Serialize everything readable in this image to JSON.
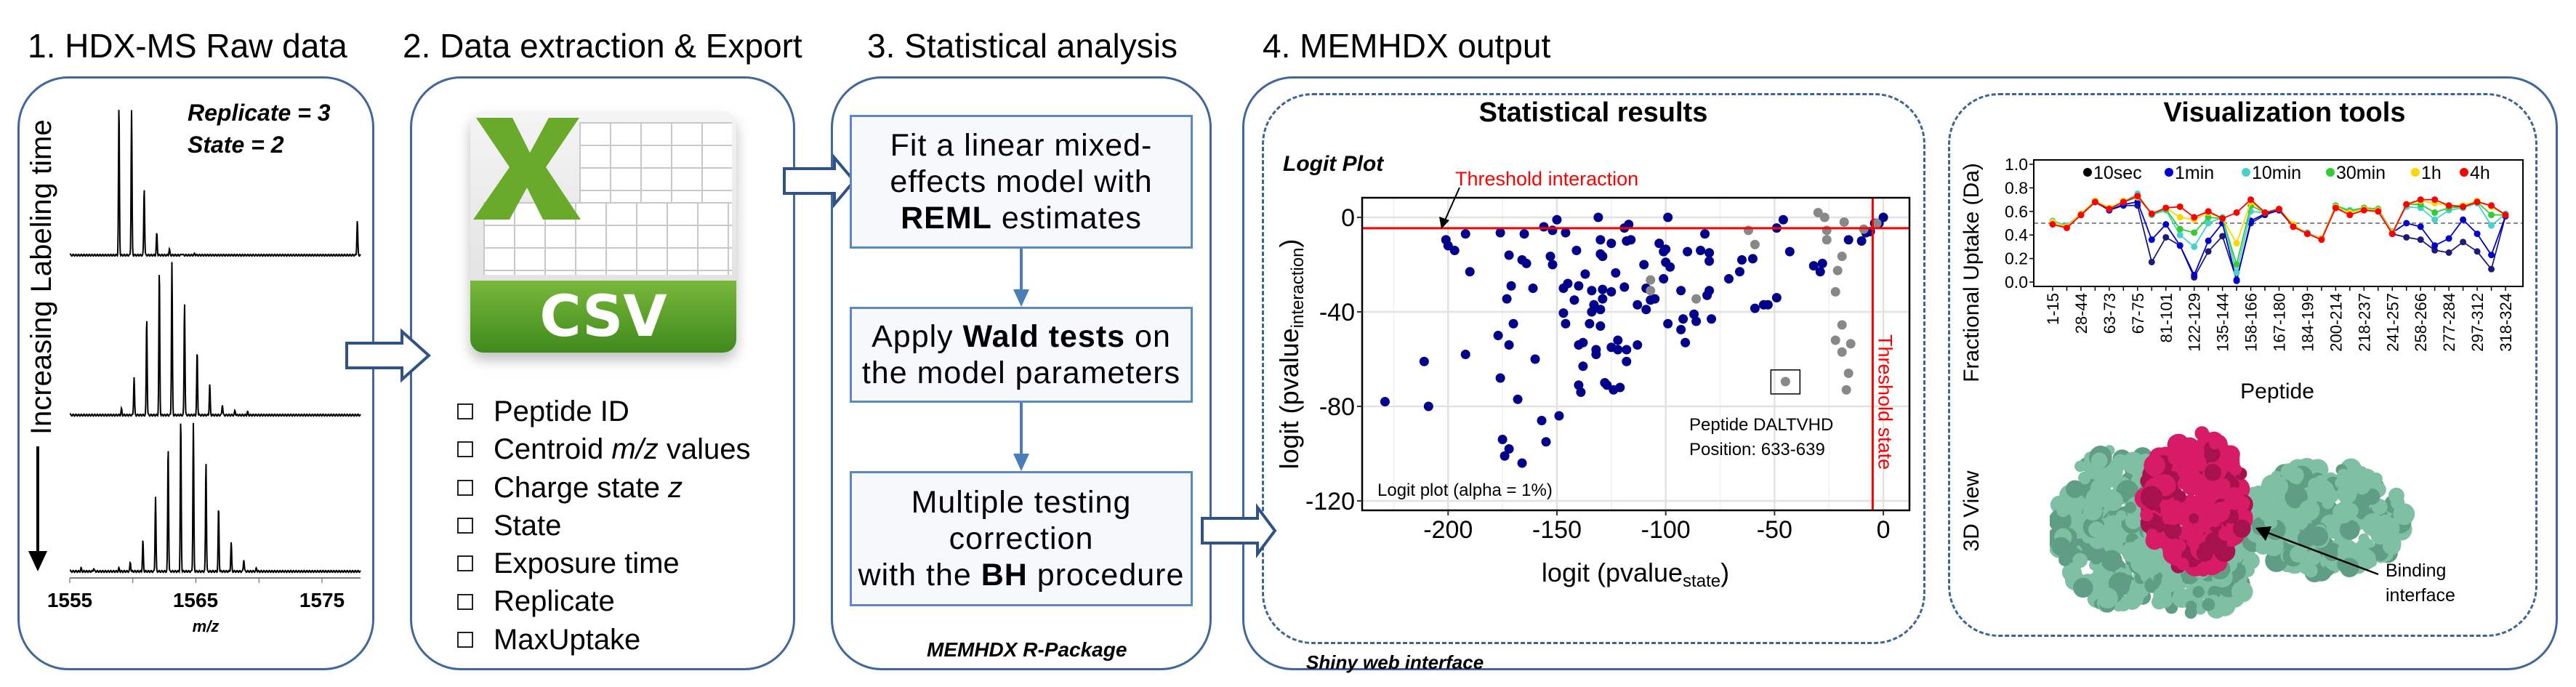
{
  "step1": {
    "title": "1. HDX-MS Raw data",
    "replicate": "Replicate = 3",
    "state": "State = 2",
    "time_axis_label": "Increasing Labeling time",
    "mz_ticks": [
      "1555",
      "1565",
      "1575"
    ],
    "mz_label": "m/z",
    "spectra": [
      {
        "peaks_mz": [
          1558.9,
          1559.9,
          1560.9,
          1561.9,
          1562.9,
          1563.9,
          1564.9,
          1577.8
        ],
        "rel_intensity": [
          1.0,
          0.97,
          0.45,
          0.15,
          0.04,
          0.01,
          0.01,
          0.23
        ]
      },
      {
        "peaks_mz": [
          1559.1,
          1560.1,
          1561.1,
          1562.1,
          1563.1,
          1564.1,
          1565.1,
          1566.1,
          1567.1,
          1568.1,
          1569.1
        ],
        "rel_intensity": [
          0.04,
          0.25,
          0.64,
          0.95,
          1.0,
          0.74,
          0.42,
          0.2,
          0.07,
          0.03,
          0.02
        ]
      },
      {
        "peaks_mz": [
          1555.9,
          1556.9,
          1558.9,
          1559.8,
          1560.8,
          1561.8,
          1562.8,
          1563.8,
          1564.8,
          1565.8,
          1566.8,
          1567.8,
          1568.8,
          1569.8
        ],
        "rel_intensity": [
          0.02,
          0.02,
          0.02,
          0.06,
          0.2,
          0.49,
          0.82,
          1.0,
          0.97,
          0.72,
          0.42,
          0.19,
          0.08,
          0.02
        ]
      }
    ]
  },
  "step2": {
    "title": "2. Data extraction & Export",
    "file_icon_label": "CSV",
    "fields": [
      {
        "pre": "Peptide ID",
        "em": "",
        "post": ""
      },
      {
        "pre": "Centroid ",
        "em": "m/z",
        "post": " values"
      },
      {
        "pre": "Charge state ",
        "em": "z",
        "post": ""
      },
      {
        "pre": "State",
        "em": "",
        "post": ""
      },
      {
        "pre": "Exposure time",
        "em": "",
        "post": ""
      },
      {
        "pre": "Replicate",
        "em": "",
        "post": ""
      },
      {
        "pre": "MaxUptake",
        "em": "",
        "post": ""
      }
    ]
  },
  "step3": {
    "title": "3. Statistical analysis",
    "box1": {
      "l1": "Fit a linear mixed-",
      "l2": "effects model with",
      "bold": "REML",
      "l3": " estimates"
    },
    "box2": {
      "pre": "Apply ",
      "bold": "Wald tests",
      "post": " on",
      "l2": "the model parameters"
    },
    "box3": {
      "l1": "Multiple testing",
      "l2": "correction",
      "pre": "with the ",
      "bold": "BH",
      "post": " procedure"
    },
    "footer": "MEMHDX R-Package"
  },
  "step4": {
    "title": "4. MEMHDX output",
    "footer": "Shiny web interface",
    "stats": {
      "title": "Statistical results",
      "plot_title": "Logit Plot",
      "threshold_interaction": "Threshold interaction",
      "threshold_state": "Threshold state",
      "peptide_name": "Peptide DALTVHD",
      "peptide_position": "Position: 633-639",
      "alpha_note": "Logit plot (alpha = 1%)"
    },
    "viz": {
      "title": "Visualization tools",
      "view3d_label": "3D View",
      "binding_l1": "Binding",
      "binding_l2": "interface",
      "colors": {
        "protein": "#7fbfa3",
        "interface": "#d81b66"
      }
    }
  },
  "chart_data": [
    {
      "type": "scatter",
      "title": "Logit Plot",
      "xlabel": "logit (pvalue",
      "xlabel_sub": "state",
      "ylabel": "logit (pvalue",
      "ylabel_sub": "interaction",
      "xlim": [
        -239.5,
        12
      ],
      "ylim": [
        -124,
        8.3
      ],
      "xticks": [
        -200,
        -150,
        -100,
        -50,
        0
      ],
      "yticks": [
        0,
        -40,
        -80,
        -120
      ],
      "grid": true,
      "thresholds": {
        "interaction_y": -4.6,
        "state_x": -4.9,
        "color": "#ff0000"
      },
      "series": [
        {
          "color": "#00008b",
          "points": [
            [
              -229,
              -78
            ],
            [
              -211,
              -61
            ],
            [
              -209,
              -80
            ],
            [
              -201,
              -9.5
            ],
            [
              -200,
              -12
            ],
            [
              -197,
              -14
            ],
            [
              -192,
              -7
            ],
            [
              -190,
              -23
            ],
            [
              -192,
              -58
            ],
            [
              -177,
              -50
            ],
            [
              -176,
              -6.5
            ],
            [
              -176,
              -68
            ],
            [
              -175,
              -94
            ],
            [
              -174,
              -101
            ],
            [
              -172,
              -98
            ],
            [
              -173,
              -34.5
            ],
            [
              -172,
              -16
            ],
            [
              -171,
              -29
            ],
            [
              -170,
              -45
            ],
            [
              -172,
              -54
            ],
            [
              -168,
              -77
            ],
            [
              -166,
              -104
            ],
            [
              -166,
              -18
            ],
            [
              -165,
              -7
            ],
            [
              -164,
              -19.5
            ],
            [
              -161,
              -30
            ],
            [
              -160,
              -60
            ],
            [
              -157,
              -86
            ],
            [
              -155,
              -95
            ],
            [
              -156,
              -4
            ],
            [
              -152,
              -5.5
            ],
            [
              -150,
              -1
            ],
            [
              -153,
              -16.5
            ],
            [
              -152,
              -20
            ],
            [
              -149,
              -84
            ],
            [
              -147,
              -30
            ],
            [
              -147,
              -40.5
            ],
            [
              -146,
              -6.5
            ],
            [
              -146,
              -45
            ],
            [
              -145,
              -28
            ],
            [
              -142,
              -35
            ],
            [
              -141,
              -14
            ],
            [
              -140,
              -54
            ],
            [
              -140,
              -29
            ],
            [
              -140,
              -71
            ],
            [
              -139,
              -74
            ],
            [
              -138,
              -63
            ],
            [
              -138,
              -53
            ],
            [
              -137,
              -24
            ],
            [
              -135,
              -45
            ],
            [
              -134,
              -31
            ],
            [
              -134,
              -40
            ],
            [
              -133,
              -37
            ],
            [
              -132,
              -58
            ],
            [
              -132,
              -56
            ],
            [
              -131,
              0
            ],
            [
              -130,
              -9.5
            ],
            [
              -130,
              -15.5
            ],
            [
              -130,
              -39
            ],
            [
              -130,
              -46
            ],
            [
              -129,
              -30.5
            ],
            [
              -129,
              -16.5
            ],
            [
              -129,
              -34.5
            ],
            [
              -128,
              -70
            ],
            [
              -127,
              -71
            ],
            [
              -125,
              -31.5
            ],
            [
              -125,
              -11
            ],
            [
              -125,
              -55
            ],
            [
              -124,
              -73
            ],
            [
              -123,
              -23.5
            ],
            [
              -122,
              -52
            ],
            [
              -122,
              -56
            ],
            [
              -121,
              -72
            ],
            [
              -119,
              -4.5
            ],
            [
              -119,
              -29.5
            ],
            [
              -118,
              -56
            ],
            [
              -118,
              -61
            ],
            [
              -118,
              -10
            ],
            [
              -117,
              -3
            ],
            [
              -116,
              -9.5
            ],
            [
              -113,
              -37
            ],
            [
              -113,
              -54
            ],
            [
              -110,
              -20
            ],
            [
              -109,
              -39
            ],
            [
              -109,
              -30
            ],
            [
              -107,
              -35
            ],
            [
              -105,
              -34.5
            ],
            [
              -103,
              -11
            ],
            [
              -101,
              -26
            ],
            [
              -101,
              -14.5
            ],
            [
              -100,
              -13.5
            ],
            [
              -100,
              -19
            ],
            [
              -99,
              0
            ],
            [
              -99,
              -45
            ],
            [
              -98,
              -21
            ],
            [
              -93,
              -31
            ],
            [
              -93,
              -47.5
            ],
            [
              -92,
              -43
            ],
            [
              -91,
              -53
            ],
            [
              -90,
              -14.5
            ],
            [
              -87,
              -41
            ],
            [
              -86,
              -44
            ],
            [
              -84,
              -14
            ],
            [
              -82,
              -7
            ],
            [
              -81,
              -33
            ],
            [
              -80,
              -15
            ],
            [
              -80,
              -31
            ],
            [
              -80,
              -18.5
            ],
            [
              -79,
              -43
            ],
            [
              -71,
              -26
            ],
            [
              -66,
              -23
            ],
            [
              -65,
              -18
            ],
            [
              -60,
              -17.5
            ],
            [
              -59,
              -38.5
            ],
            [
              -55,
              -37
            ],
            [
              -53,
              -37
            ],
            [
              -49,
              -34
            ],
            [
              -49,
              -4.5
            ],
            [
              -46,
              -1
            ],
            [
              -43,
              -14.5
            ],
            [
              -32,
              -20.5
            ],
            [
              -29,
              -23
            ],
            [
              -28,
              -19.5
            ],
            [
              -16,
              -9.5
            ],
            [
              -10,
              -10
            ],
            [
              -8,
              -6.5
            ],
            [
              -6,
              -6
            ],
            [
              -4,
              -2.5
            ],
            [
              -2,
              -2.5
            ],
            [
              0,
              0
            ]
          ]
        },
        {
          "color": "#888888",
          "points": [
            [
              -107,
              -26.5
            ],
            [
              -107,
              -31
            ],
            [
              -86,
              -34.5
            ],
            [
              -62,
              -5.5
            ],
            [
              -59,
              -11.5
            ],
            [
              -45,
              -69.5
            ],
            [
              -30,
              2
            ],
            [
              -27,
              0
            ],
            [
              -26,
              -5.5
            ],
            [
              -26,
              -9.5
            ],
            [
              -18,
              -2
            ],
            [
              -19,
              -16.5
            ],
            [
              -21,
              -22.5
            ],
            [
              -22,
              -31.5
            ],
            [
              -19,
              -45.5
            ],
            [
              -22,
              -52
            ],
            [
              -19,
              -57
            ],
            [
              -15,
              -53.5
            ],
            [
              -16,
              -66
            ],
            [
              -17,
              -73
            ],
            [
              -9,
              -5
            ],
            [
              -3,
              -2.5
            ]
          ]
        }
      ],
      "highlighted_point": [
        -45,
        -69.5
      ]
    },
    {
      "type": "line",
      "xlabel": "Peptide",
      "ylabel": "Fractional Uptake (Da)",
      "ylim": [
        0,
        1
      ],
      "yticks": [
        "0.0",
        "0.2",
        "0.4",
        "0.6",
        "0.8",
        "1.0"
      ],
      "reference_line": 0.5,
      "legend_position": "top",
      "categories": [
        "1-15",
        "",
        "28-44",
        "",
        "63-73",
        "",
        "67-75",
        "",
        "81-101",
        "",
        "122-129",
        "",
        "135-144",
        "",
        "158-166",
        "",
        "167-180",
        "",
        "184-199",
        "",
        "200-214",
        "",
        "218-237",
        "",
        "241-257",
        "",
        "258-266",
        "",
        "277-284",
        "",
        "297-312",
        "",
        "318-324"
      ],
      "series": [
        {
          "name": "10sec",
          "color": "#1c1c78",
          "legend_color": "#000000",
          "values": [
            0.51,
            0.47,
            0.57,
            0.68,
            0.61,
            0.65,
            0.65,
            0.17,
            0.38,
            0.31,
            0.04,
            0.26,
            0.39,
            0.02,
            0.5,
            0.57,
            0.61,
            0.47,
            0.41,
            0.37,
            0.63,
            0.6,
            0.62,
            0.61,
            0.41,
            0.38,
            0.36,
            0.27,
            0.25,
            0.34,
            0.26,
            0.11,
            0.56
          ]
        },
        {
          "name": "1min",
          "color": "#0000cd",
          "values": [
            0.51,
            0.47,
            0.57,
            0.68,
            0.61,
            0.66,
            0.68,
            0.36,
            0.49,
            0.31,
            0.06,
            0.35,
            0.5,
            0.01,
            0.52,
            0.58,
            0.61,
            0.48,
            0.41,
            0.37,
            0.64,
            0.6,
            0.63,
            0.61,
            0.42,
            0.5,
            0.47,
            0.31,
            0.37,
            0.53,
            0.41,
            0.23,
            0.56
          ]
        },
        {
          "name": "10min",
          "color": "#48d1cc",
          "values": [
            0.52,
            0.48,
            0.58,
            0.69,
            0.62,
            0.68,
            0.75,
            0.57,
            0.61,
            0.4,
            0.3,
            0.5,
            0.55,
            0.08,
            0.6,
            0.59,
            0.62,
            0.48,
            0.42,
            0.37,
            0.65,
            0.61,
            0.63,
            0.62,
            0.43,
            0.64,
            0.63,
            0.53,
            0.61,
            0.63,
            0.67,
            0.48,
            0.58
          ]
        },
        {
          "name": "30min",
          "color": "#32cd32",
          "values": [
            0.51,
            0.47,
            0.58,
            0.69,
            0.63,
            0.68,
            0.72,
            0.58,
            0.62,
            0.45,
            0.42,
            0.55,
            0.54,
            0.15,
            0.65,
            0.59,
            0.62,
            0.48,
            0.41,
            0.37,
            0.65,
            0.6,
            0.63,
            0.62,
            0.42,
            0.66,
            0.66,
            0.59,
            0.63,
            0.64,
            0.68,
            0.57,
            0.57
          ]
        },
        {
          "name": "1h",
          "color": "#ffd700",
          "values": [
            0.51,
            0.47,
            0.58,
            0.69,
            0.63,
            0.69,
            0.72,
            0.58,
            0.63,
            0.55,
            0.53,
            0.59,
            0.54,
            0.33,
            0.68,
            0.59,
            0.62,
            0.49,
            0.41,
            0.37,
            0.64,
            0.59,
            0.62,
            0.61,
            0.42,
            0.66,
            0.69,
            0.67,
            0.65,
            0.65,
            0.69,
            0.64,
            0.57
          ]
        },
        {
          "name": "4h",
          "color": "#ff0000",
          "values": [
            0.49,
            0.46,
            0.57,
            0.68,
            0.62,
            0.68,
            0.73,
            0.58,
            0.63,
            0.64,
            0.55,
            0.6,
            0.54,
            0.59,
            0.7,
            0.59,
            0.62,
            0.47,
            0.41,
            0.36,
            0.63,
            0.57,
            0.61,
            0.6,
            0.41,
            0.66,
            0.7,
            0.7,
            0.65,
            0.64,
            0.68,
            0.65,
            0.57
          ]
        }
      ]
    }
  ]
}
